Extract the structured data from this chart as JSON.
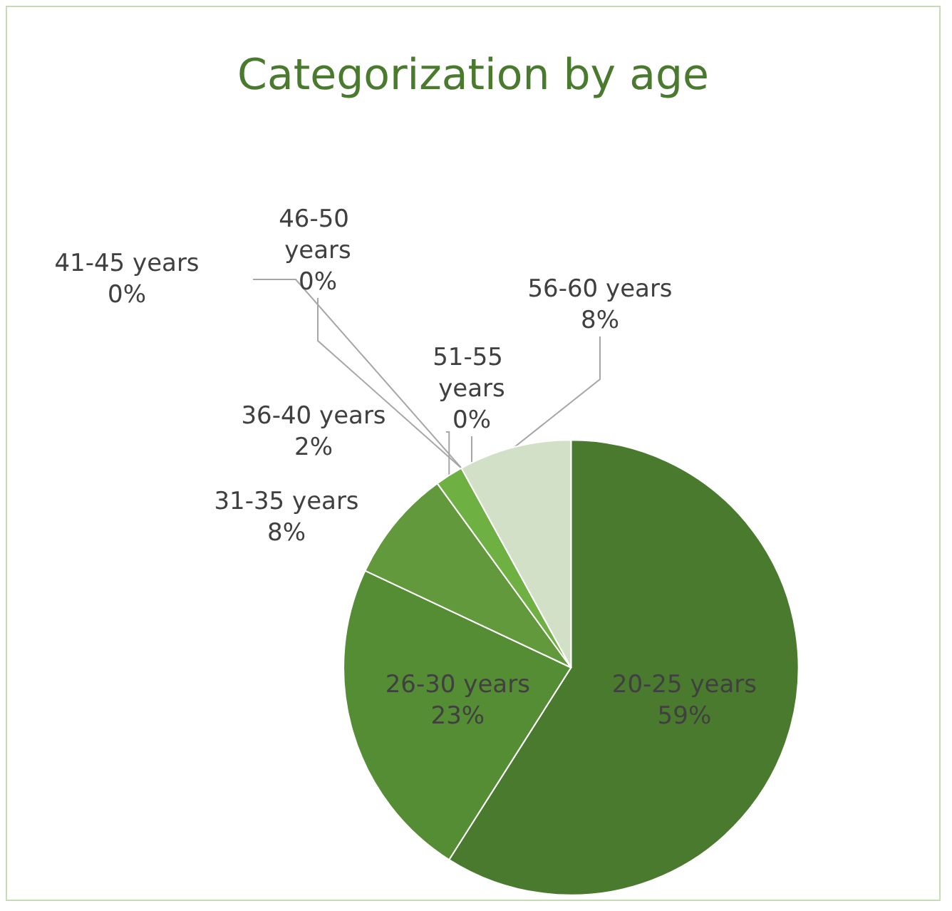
{
  "chart_data": {
    "type": "pie",
    "title": "Categorization by age",
    "categories": [
      "20-25 years",
      "26-30 years",
      "31-35 years",
      "36-40 years",
      "41-45 years",
      "46-50 years",
      "51-55 years",
      "56-60 years"
    ],
    "values": [
      59,
      23,
      8,
      2,
      0,
      0,
      0,
      8
    ],
    "colors": [
      "#4a7a2e",
      "#558d34",
      "#62993d",
      "#6fb043",
      "#7dbb52",
      "#93c872",
      "#a9d490",
      "#d3e0c8"
    ],
    "value_labels": [
      "59%",
      "23%",
      "8%",
      "2%",
      "0%",
      "0%",
      "0%",
      "8%"
    ],
    "legend": false
  }
}
